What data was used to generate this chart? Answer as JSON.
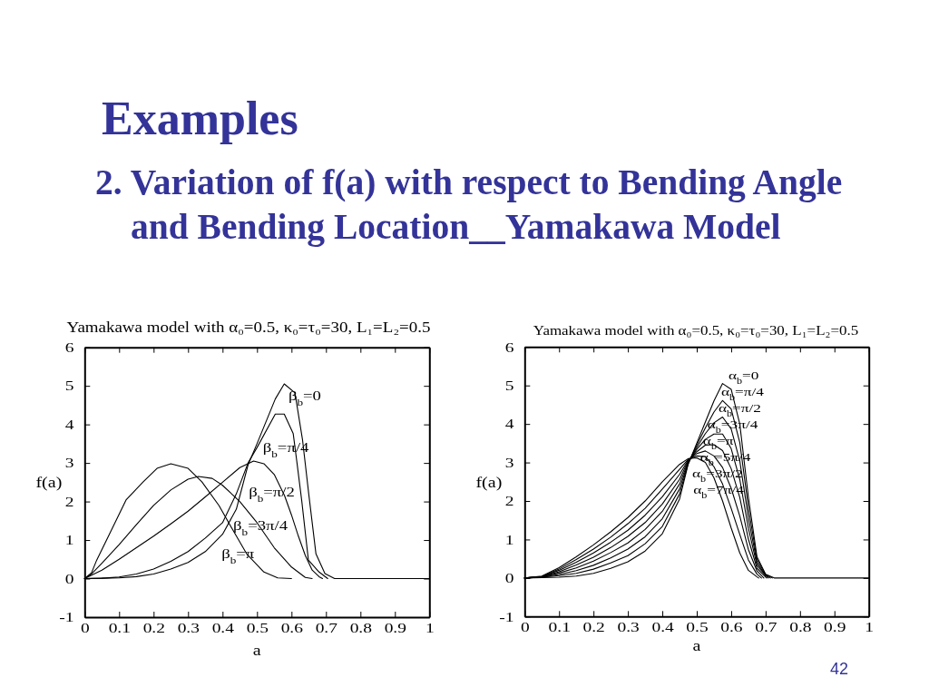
{
  "chart_data": [
    {
      "type": "other",
      "title": "Examples",
      "subtitle": "2. Variation of f(a) with respect to Bending Angle and Bending Location__Yamakawa Model",
      "annotations": [
        "42"
      ]
    },
    {
      "type": "line",
      "title": "Yamakawa model with α₀=0.5, κ₀=τ₀=30, L₁=L₂=0.5",
      "xlabel": "a",
      "ylabel": "f(a)",
      "xlim": [
        0,
        1
      ],
      "ylim": [
        -1,
        6
      ],
      "xticks": [
        0,
        0.1,
        0.2,
        0.3,
        0.4,
        0.5,
        0.6,
        0.7,
        0.8,
        0.9,
        1
      ],
      "yticks": [
        -1,
        0,
        1,
        2,
        3,
        4,
        5,
        6
      ],
      "series": [
        {
          "name": "β$_{b}$=0",
          "color": "#000000",
          "x": [
            0,
            0.05,
            0.1,
            0.15,
            0.2,
            0.25,
            0.3,
            0.35,
            0.4,
            0.44,
            0.474,
            0.5,
            0.553,
            0.579,
            0.61,
            0.632,
            0.65,
            0.671,
            0.697,
            0.725,
            1
          ],
          "values": [
            0,
            0.01,
            0.02,
            0.05,
            0.12,
            0.25,
            0.42,
            0.7,
            1.15,
            1.8,
            2.95,
            3.5,
            4.66,
            5.05,
            4.82,
            3.6,
            2.2,
            0.64,
            0.13,
            0,
            0
          ]
        },
        {
          "name": "β$_{b}$=π/4",
          "color": "#000000",
          "x": [
            0,
            0.05,
            0.1,
            0.15,
            0.2,
            0.25,
            0.3,
            0.35,
            0.4,
            0.44,
            0.474,
            0.5,
            0.553,
            0.579,
            0.605,
            0.616,
            0.63,
            0.649,
            0.68,
            0.705
          ],
          "values": [
            0,
            0.01,
            0.04,
            0.12,
            0.25,
            0.45,
            0.7,
            1.05,
            1.45,
            2.2,
            3.0,
            3.4,
            4.27,
            4.27,
            3.76,
            3.0,
            2.0,
            0.48,
            0.17,
            0
          ]
        },
        {
          "name": "β$_{b}$=π/2",
          "color": "#000000",
          "x": [
            0,
            0.05,
            0.1,
            0.15,
            0.2,
            0.25,
            0.3,
            0.35,
            0.4,
            0.45,
            0.49,
            0.52,
            0.55,
            0.58,
            0.6,
            0.62,
            0.64,
            0.66,
            0.68,
            0.69
          ],
          "values": [
            0,
            0.22,
            0.5,
            0.8,
            1.1,
            1.42,
            1.75,
            2.12,
            2.5,
            2.88,
            3.05,
            2.98,
            2.7,
            2.15,
            1.65,
            1.1,
            0.6,
            0.22,
            0.05,
            0
          ]
        },
        {
          "name": "β$_{b}$=3π/4",
          "color": "#000000",
          "x": [
            0,
            0.02,
            0.05,
            0.1,
            0.15,
            0.2,
            0.25,
            0.3,
            0.33,
            0.37,
            0.4,
            0.45,
            0.5,
            0.55,
            0.6,
            0.64,
            0.66
          ],
          "values": [
            0,
            0.12,
            0.4,
            0.88,
            1.4,
            1.9,
            2.3,
            2.58,
            2.65,
            2.6,
            2.42,
            2.0,
            1.45,
            0.8,
            0.3,
            0.03,
            0
          ]
        },
        {
          "name": "β$_{b}$=π",
          "color": "#000000",
          "x": [
            0,
            0.02,
            0.035,
            0.08,
            0.12,
            0.17,
            0.21,
            0.25,
            0.3,
            0.34,
            0.39,
            0.43,
            0.47,
            0.52,
            0.56,
            0.6
          ],
          "values": [
            0,
            0.15,
            0.48,
            1.3,
            2.04,
            2.51,
            2.86,
            2.98,
            2.86,
            2.51,
            1.89,
            1.26,
            0.64,
            0.17,
            0.02,
            0
          ]
        }
      ]
    },
    {
      "type": "line",
      "title": "Yamakawa model with α₀=0.5, κ₀=τ₀=30, L₁=L₂=0.5",
      "xlabel": "a",
      "ylabel": "f(a)",
      "xlim": [
        0,
        1
      ],
      "ylim": [
        -1,
        6
      ],
      "xticks": [
        0,
        0.1,
        0.2,
        0.3,
        0.4,
        0.5,
        0.6,
        0.7,
        0.8,
        0.9,
        1
      ],
      "yticks": [
        -1,
        0,
        1,
        2,
        3,
        4,
        5,
        6
      ],
      "series": [
        {
          "name": "α$_{b}$=0",
          "color": "#000000",
          "x": [
            0,
            0.05,
            0.1,
            0.15,
            0.2,
            0.25,
            0.3,
            0.35,
            0.4,
            0.45,
            0.475,
            0.5,
            0.525,
            0.55,
            0.575,
            0.6,
            0.625,
            0.65,
            0.675,
            0.7,
            0.725,
            1
          ],
          "values": [
            0,
            0.01,
            0.02,
            0.05,
            0.12,
            0.25,
            0.42,
            0.7,
            1.15,
            2.05,
            2.95,
            3.5,
            4.05,
            4.6,
            5.05,
            4.9,
            4.0,
            2.1,
            0.55,
            0.1,
            0,
            0
          ]
        },
        {
          "name": "α$_{b}$=π/4",
          "color": "#000000",
          "x": [
            0,
            0.05,
            0.1,
            0.15,
            0.2,
            0.25,
            0.3,
            0.35,
            0.4,
            0.45,
            0.475,
            0.5,
            0.525,
            0.55,
            0.575,
            0.6,
            0.625,
            0.65,
            0.675,
            0.7,
            0.72
          ],
          "values": [
            0,
            0.02,
            0.06,
            0.12,
            0.23,
            0.39,
            0.58,
            0.89,
            1.34,
            2.18,
            2.97,
            3.45,
            3.9,
            4.31,
            4.61,
            4.39,
            3.52,
            1.83,
            0.48,
            0.09,
            0
          ]
        },
        {
          "name": "α$_{b}$=π/2",
          "color": "#000000",
          "x": [
            0,
            0.05,
            0.1,
            0.15,
            0.2,
            0.25,
            0.3,
            0.35,
            0.4,
            0.45,
            0.475,
            0.5,
            0.525,
            0.55,
            0.575,
            0.6,
            0.625,
            0.65,
            0.675,
            0.7,
            0.714
          ],
          "values": [
            0,
            0.02,
            0.09,
            0.19,
            0.33,
            0.52,
            0.75,
            1.07,
            1.54,
            2.31,
            2.99,
            3.39,
            3.75,
            4.03,
            4.18,
            3.87,
            3.04,
            1.56,
            0.4,
            0.07,
            0
          ]
        },
        {
          "name": "α$_{b}$=3π/4",
          "color": "#000000",
          "x": [
            0,
            0.05,
            0.1,
            0.15,
            0.2,
            0.25,
            0.3,
            0.35,
            0.4,
            0.45,
            0.475,
            0.5,
            0.525,
            0.55,
            0.575,
            0.6,
            0.625,
            0.65,
            0.675,
            0.7,
            0.708
          ],
          "values": [
            0,
            0.03,
            0.13,
            0.26,
            0.44,
            0.66,
            0.91,
            1.26,
            1.73,
            2.44,
            3.01,
            3.34,
            3.6,
            3.74,
            3.74,
            3.36,
            2.56,
            1.29,
            0.33,
            0.06,
            0
          ]
        },
        {
          "name": "α$_{b}$=π",
          "color": "#000000",
          "x": [
            0,
            0.05,
            0.1,
            0.15,
            0.2,
            0.25,
            0.3,
            0.35,
            0.4,
            0.45,
            0.475,
            0.5,
            0.525,
            0.55,
            0.575,
            0.6,
            0.625,
            0.65,
            0.675,
            0.703
          ],
          "values": [
            0,
            0.03,
            0.16,
            0.34,
            0.54,
            0.79,
            1.08,
            1.44,
            1.92,
            2.56,
            3.04,
            3.28,
            3.45,
            3.46,
            3.31,
            2.84,
            2.09,
            1.01,
            0.25,
            0
          ]
        },
        {
          "name": "α$_{b}$=5π/4",
          "color": "#000000",
          "x": [
            0,
            0.05,
            0.1,
            0.15,
            0.2,
            0.25,
            0.3,
            0.35,
            0.4,
            0.45,
            0.475,
            0.5,
            0.525,
            0.55,
            0.575,
            0.6,
            0.625,
            0.65,
            0.675,
            0.695
          ],
          "values": [
            0,
            0.04,
            0.2,
            0.41,
            0.65,
            0.93,
            1.24,
            1.63,
            2.11,
            2.69,
            3.06,
            3.23,
            3.3,
            3.17,
            2.87,
            2.33,
            1.61,
            0.74,
            0.18,
            0
          ]
        },
        {
          "name": "α$_{b}$=3π/2",
          "color": "#000000",
          "x": [
            0,
            0.05,
            0.1,
            0.15,
            0.2,
            0.25,
            0.3,
            0.35,
            0.4,
            0.45,
            0.475,
            0.5,
            0.525,
            0.55,
            0.575,
            0.6,
            0.625,
            0.65,
            0.675,
            0.688
          ],
          "values": [
            0,
            0.04,
            0.23,
            0.48,
            0.75,
            1.06,
            1.41,
            1.81,
            2.31,
            2.82,
            3.08,
            3.17,
            3.15,
            2.89,
            2.44,
            1.81,
            1.13,
            0.47,
            0.1,
            0
          ]
        },
        {
          "name": "α$_{b}$=7π/4",
          "color": "#000000",
          "x": [
            0,
            0.05,
            0.1,
            0.15,
            0.2,
            0.25,
            0.3,
            0.35,
            0.4,
            0.45,
            0.475,
            0.5,
            0.525,
            0.55,
            0.575,
            0.6,
            0.625,
            0.65,
            0.675,
            0.68
          ],
          "values": [
            0,
            0.05,
            0.27,
            0.55,
            0.86,
            1.2,
            1.57,
            2.0,
            2.5,
            2.95,
            3.1,
            3.12,
            3.0,
            2.6,
            2.0,
            1.3,
            0.65,
            0.2,
            0.03,
            0
          ]
        }
      ]
    }
  ]
}
